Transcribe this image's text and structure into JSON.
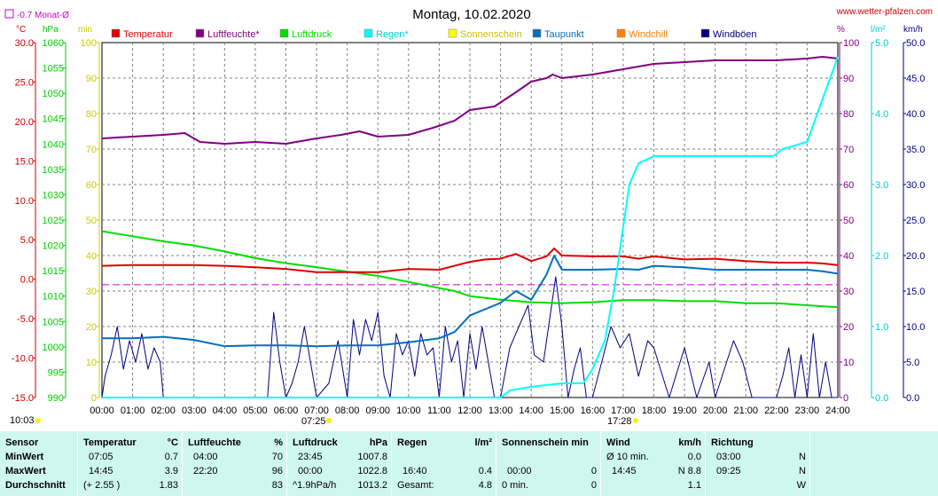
{
  "header": {
    "title": "Montag, 10.02.2020",
    "site": "www.wetter-pfalzen.com",
    "monthly_avg": "-0.7 Monat-Ø",
    "units_left": [
      "°C",
      "hPa",
      "min"
    ],
    "units_right": [
      "%",
      "l/m²",
      "km/h"
    ],
    "sunrise_time": "07:25",
    "sunset_time": "17:28",
    "corner_time": "10:03"
  },
  "chart_data": {
    "type": "line",
    "x_ticks": [
      "00:00",
      "01:00",
      "02:00",
      "03:00",
      "04:00",
      "05:00",
      "06:00",
      "07:00",
      "08:00",
      "09:00",
      "10:00",
      "11:00",
      "12:00",
      "13:00",
      "14:00",
      "15:00",
      "16:00",
      "17:00",
      "18:00",
      "19:00",
      "20:00",
      "21:00",
      "22:00",
      "23:00",
      "24:00"
    ],
    "axes": {
      "temp_c": {
        "range": [
          -15,
          30
        ],
        "ticks": [
          "30.0",
          "25.0",
          "20.0",
          "15.0",
          "10.0",
          "5.0",
          "0.0",
          "-5.0",
          "-10.0",
          "-15.0"
        ],
        "color": "#cc0000"
      },
      "pressure_hpa": {
        "range": [
          990,
          1060
        ],
        "ticks": [
          "1060",
          "1055",
          "1050",
          "1045",
          "1040",
          "1035",
          "1030",
          "1025",
          "1020",
          "1015",
          "1010",
          "1005",
          "1000",
          "995",
          "990"
        ],
        "color": "#00cc00"
      },
      "sunshine_min": {
        "range": [
          0,
          100
        ],
        "ticks": [
          "100",
          "90",
          "80",
          "70",
          "60",
          "50",
          "40",
          "30",
          "20",
          "10",
          "0"
        ],
        "color": "#dddd00"
      },
      "humidity_pct": {
        "range": [
          0,
          100
        ],
        "ticks": [
          "100",
          "90",
          "80",
          "70",
          "60",
          "50",
          "40",
          "30",
          "20",
          "10",
          "0"
        ],
        "color": "#800080"
      },
      "rain_lm2": {
        "range": [
          0,
          5
        ],
        "ticks": [
          "5.0",
          "4.0",
          "3.0",
          "2.0",
          "1.0",
          "0.0"
        ],
        "color": "#00dddd"
      },
      "wind_kmh": {
        "range": [
          0,
          50
        ],
        "ticks": [
          "50.0",
          "45.0",
          "40.0",
          "35.0",
          "30.0",
          "25.0",
          "20.0",
          "15.0",
          "10.0",
          "5.0",
          "0.0"
        ],
        "color": "#000080"
      }
    },
    "monthly_avg_line": -0.7,
    "legend": [
      {
        "name": "Temperatur",
        "color": "#dd0000"
      },
      {
        "name": "Luftfeuchte*",
        "color": "#800080"
      },
      {
        "name": "Luftdruck",
        "color": "#00dd00"
      },
      {
        "name": "Regen*",
        "color": "#00ffff"
      },
      {
        "name": "Sonnenschein",
        "color": "#ffff00"
      },
      {
        "name": "Taupunkt",
        "color": "#0070c0"
      },
      {
        "name": "Windchill",
        "color": "#ff8000"
      },
      {
        "name": "Windböen",
        "color": "#000080"
      }
    ],
    "series": [
      {
        "name": "Temperatur",
        "axis": "temp_c",
        "color": "#dd0000",
        "x": [
          0,
          1,
          2,
          3,
          4,
          5,
          6,
          7,
          8,
          9,
          10,
          11,
          12,
          12.5,
          13,
          13.5,
          14,
          14.5,
          14.75,
          15,
          16,
          17,
          17.5,
          18,
          19,
          20,
          21,
          22,
          23,
          23.5,
          24
        ],
        "y": [
          1.7,
          1.8,
          1.8,
          1.8,
          1.7,
          1.5,
          1.3,
          0.9,
          0.9,
          0.9,
          1.3,
          1.2,
          2.2,
          2.5,
          2.6,
          3.2,
          2.3,
          2.9,
          3.9,
          3.0,
          2.9,
          2.9,
          2.6,
          2.9,
          2.5,
          2.6,
          2.3,
          2.1,
          2.1,
          2.0,
          1.8
        ]
      },
      {
        "name": "Luftfeuchte*",
        "axis": "humidity_pct",
        "color": "#800080",
        "x": [
          0,
          1,
          2,
          2.7,
          3.2,
          4,
          5,
          6,
          7,
          7.8,
          8.4,
          9,
          10,
          10.8,
          11.5,
          12,
          12.8,
          13.5,
          14,
          14.5,
          14.7,
          15,
          16,
          17,
          18,
          19,
          20,
          21,
          22,
          23,
          23.5,
          24
        ],
        "y": [
          73,
          73.5,
          74,
          74.5,
          72,
          71.5,
          72,
          71.5,
          73,
          74,
          75,
          73.5,
          74,
          76,
          78,
          81,
          82,
          86,
          89,
          90,
          91,
          90,
          91,
          92.5,
          94,
          94.5,
          95,
          95,
          95,
          95.5,
          96,
          95.5
        ]
      },
      {
        "name": "Luftdruck",
        "axis": "pressure_hpa",
        "color": "#00dd00",
        "x": [
          0,
          1,
          2,
          3,
          4,
          5,
          6,
          7,
          8,
          9,
          10,
          11,
          11.5,
          12,
          13,
          14,
          15,
          16,
          17,
          18,
          19,
          20,
          21,
          22,
          23,
          24
        ],
        "y": [
          1022.8,
          1021.8,
          1020.8,
          1020,
          1018.8,
          1017.5,
          1016.5,
          1015.7,
          1014.8,
          1014,
          1012.8,
          1011.6,
          1011,
          1010,
          1009.3,
          1008.8,
          1008.6,
          1008.8,
          1009.2,
          1009.2,
          1009,
          1009,
          1008.6,
          1008.6,
          1008.2,
          1007.8
        ]
      },
      {
        "name": "Regen*",
        "axis": "rain_lm2",
        "color": "#00ffff",
        "x": [
          0,
          13,
          13.3,
          14,
          15,
          15.7,
          16,
          16.4,
          16.7,
          17,
          17.2,
          17.5,
          18,
          19,
          20,
          21,
          21.9,
          22.2,
          23,
          23.5,
          24
        ],
        "y": [
          0,
          0,
          0.1,
          0.15,
          0.2,
          0.2,
          0.4,
          0.8,
          1.5,
          2.4,
          3.0,
          3.3,
          3.4,
          3.4,
          3.4,
          3.4,
          3.4,
          3.5,
          3.6,
          4.2,
          4.8
        ]
      },
      {
        "name": "Taupunkt",
        "axis": "temp_c",
        "color": "#0070c0",
        "x": [
          0,
          1,
          2,
          3,
          4,
          5,
          6,
          7,
          8,
          9,
          10,
          11,
          11.5,
          12,
          12.5,
          13,
          13.5,
          14,
          14.5,
          14.75,
          15,
          16,
          17,
          17.5,
          18,
          19,
          20,
          21,
          22,
          23,
          23.5,
          24
        ],
        "y": [
          -7.5,
          -7.5,
          -7.3,
          -7.7,
          -8.5,
          -8.4,
          -8.4,
          -8.5,
          -8.4,
          -8.4,
          -8.0,
          -7.5,
          -6.7,
          -4.6,
          -3.8,
          -3.0,
          -1.5,
          -2.6,
          0.6,
          3.0,
          1.2,
          1.2,
          1.3,
          1.2,
          1.7,
          1.5,
          1.2,
          1.2,
          1.2,
          1.2,
          1.0,
          0.7
        ]
      },
      {
        "name": "Windböen",
        "axis": "wind_kmh",
        "color": "#000080",
        "x": [
          0,
          0.1,
          0.3,
          0.5,
          0.7,
          0.9,
          1.1,
          1.3,
          1.5,
          1.7,
          1.9,
          2,
          3,
          4,
          5,
          5.4,
          5.6,
          5.8,
          6,
          6.2,
          6.4,
          6.6,
          7,
          7.4,
          7.7,
          8,
          8.2,
          8.4,
          8.6,
          8.8,
          9,
          9.2,
          9.4,
          9.6,
          9.8,
          10,
          10.2,
          10.4,
          10.6,
          10.8,
          11,
          11.2,
          11.4,
          11.6,
          11.8,
          12,
          12.2,
          12.4,
          12.6,
          12.8,
          13,
          13.3,
          13.6,
          13.9,
          14.1,
          14.4,
          14.6,
          14.8,
          15,
          15.2,
          15.4,
          15.6,
          15.8,
          16,
          16.3,
          16.6,
          16.9,
          17.2,
          17.5,
          17.8,
          18,
          18.5,
          19,
          19.4,
          19.8,
          20,
          20.3,
          20.6,
          20.9,
          21.2,
          21.5,
          22,
          22.2,
          22.4,
          22.6,
          22.8,
          23,
          23.2,
          23.4,
          23.6,
          23.8,
          24
        ],
        "y": [
          0,
          3,
          6,
          10,
          4,
          8,
          5,
          9,
          4,
          7,
          5,
          0,
          0,
          0,
          0,
          0,
          12,
          5,
          0,
          2,
          5,
          10,
          0,
          2,
          8,
          0,
          11,
          6,
          11,
          8,
          12,
          3,
          0,
          9,
          6,
          8,
          3,
          9,
          6,
          7,
          0,
          10,
          5,
          8,
          0,
          9,
          4,
          10,
          5,
          0,
          0,
          7,
          10,
          13,
          6,
          5,
          11,
          17,
          10,
          0,
          4,
          7,
          0,
          0,
          5,
          10,
          7,
          9,
          3,
          8,
          7,
          0,
          7,
          0,
          5,
          0,
          4,
          8,
          5,
          0,
          0,
          0,
          3,
          7,
          0,
          6,
          0,
          9,
          0,
          5,
          0,
          0
        ]
      }
    ]
  },
  "stats": {
    "sensor": {
      "header": "Sensor",
      "rows": [
        "MinWert",
        "MaxWert",
        "Durchschnitt"
      ]
    },
    "temperature": {
      "header": "Temperatur",
      "unit": "°C",
      "rows": [
        [
          "07:05",
          "0.7"
        ],
        [
          "14:45",
          "3.9"
        ],
        [
          "(+ 2.55 )",
          "1.83"
        ]
      ]
    },
    "humidity": {
      "header": "Luftfeuchte",
      "unit": "%",
      "rows": [
        [
          "04:00",
          "70"
        ],
        [
          "22:20",
          "96"
        ],
        [
          "",
          "83"
        ]
      ]
    },
    "pressure": {
      "header": "Luftdruck",
      "unit": "hPa",
      "rows": [
        [
          "23:45",
          "1007.8"
        ],
        [
          "00:00",
          "1022.8"
        ],
        [
          "^1.9hPa/h",
          "1013.2"
        ]
      ]
    },
    "rain": {
      "header": "Regen",
      "unit": "l/m²",
      "rows": [
        [
          "",
          ""
        ],
        [
          "16:40",
          "0.4"
        ],
        [
          "Gesamt:",
          "4.8"
        ]
      ]
    },
    "sunshine": {
      "header": "Sonnenschein min",
      "rows": [
        [
          "",
          ""
        ],
        [
          "00:00",
          "0"
        ],
        [
          "0 min.",
          "0"
        ]
      ]
    },
    "wind": {
      "header": "Wind",
      "unit": "km/h",
      "rows": [
        [
          "Ø 10 min.",
          "0.0"
        ],
        [
          "14:45",
          "N 8.8"
        ],
        [
          "",
          "1.1"
        ]
      ]
    },
    "direction": {
      "header": "Richtung",
      "rows": [
        [
          "03:00",
          "N"
        ],
        [
          "09:25",
          "N"
        ],
        [
          "",
          "W"
        ]
      ]
    }
  }
}
